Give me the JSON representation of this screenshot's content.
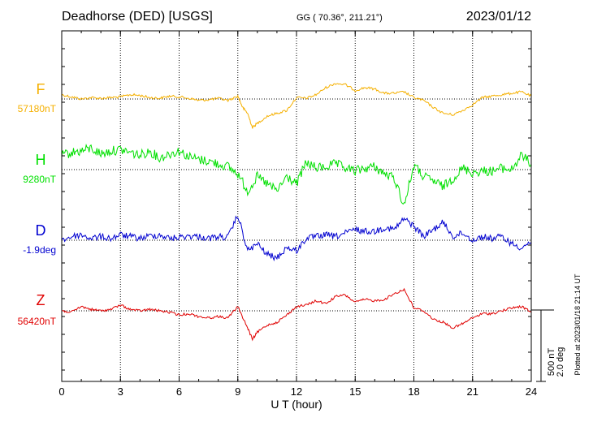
{
  "header": {
    "station": "Deadhorse (DED)  [USGS]",
    "coords": "GG ( 70.36°, 211.21°)",
    "date": "2023/01/12"
  },
  "footer": {
    "plotted_at": "Plotted at 2023/01/18 21:14 UT"
  },
  "colors": {
    "F": "#f5b000",
    "H": "#00e000",
    "D": "#0000d0",
    "Z": "#e00000",
    "axis": "#000000"
  },
  "chart_data": {
    "type": "line",
    "xlabel": "U T (hour)",
    "xlim": [
      0,
      24
    ],
    "xticks": [
      "0",
      "3",
      "6",
      "9",
      "12",
      "15",
      "18",
      "21",
      "24"
    ],
    "scale_bar": {
      "nT": "500 nT",
      "deg": "2.0 deg"
    },
    "series": [
      {
        "name": "F",
        "baseline_label": "57180nT",
        "unit": "nT",
        "x": [
          0,
          0.5,
          1,
          1.5,
          2,
          2.5,
          3,
          3.5,
          4,
          4.5,
          5,
          5.5,
          6,
          6.5,
          7,
          7.5,
          8,
          8.5,
          9,
          9.25,
          9.5,
          9.75,
          10,
          10.5,
          11,
          11.5,
          12,
          12.5,
          13,
          13.5,
          14,
          14.5,
          15,
          15.5,
          16,
          16.5,
          17,
          17.5,
          18,
          18.5,
          19,
          19.5,
          20,
          20.5,
          21,
          21.5,
          22,
          22.5,
          23,
          23.5,
          24
        ],
        "values": [
          30,
          15,
          0,
          10,
          5,
          10,
          15,
          30,
          25,
          10,
          5,
          20,
          15,
          5,
          -10,
          -5,
          5,
          -10,
          20,
          -60,
          -100,
          -200,
          -170,
          -120,
          -100,
          -80,
          10,
          5,
          30,
          80,
          110,
          100,
          60,
          80,
          70,
          40,
          40,
          50,
          10,
          -10,
          -60,
          -100,
          -110,
          -80,
          -40,
          10,
          20,
          30,
          40,
          50,
          20
        ]
      },
      {
        "name": "H",
        "baseline_label": "9280nT",
        "unit": "nT",
        "x": [
          0,
          0.5,
          1,
          1.5,
          2,
          2.5,
          3,
          3.5,
          4,
          4.5,
          5,
          5.5,
          6,
          6.5,
          7,
          7.5,
          8,
          8.5,
          9,
          9.5,
          10,
          10.5,
          11,
          11.5,
          12,
          12.5,
          13,
          13.5,
          14,
          14.5,
          15,
          15.5,
          16,
          16.5,
          17,
          17.5,
          18,
          18.5,
          19,
          19.5,
          20,
          20.5,
          21,
          21.5,
          22,
          22.5,
          23,
          23.5,
          24
        ],
        "values": [
          100,
          120,
          130,
          150,
          110,
          130,
          140,
          120,
          100,
          130,
          80,
          110,
          130,
          90,
          70,
          60,
          40,
          20,
          -30,
          -150,
          -50,
          -100,
          -150,
          -50,
          -100,
          50,
          10,
          20,
          40,
          10,
          -10,
          10,
          20,
          -30,
          -60,
          -250,
          30,
          -50,
          -80,
          -120,
          -60,
          10,
          -20,
          -10,
          -10,
          10,
          0,
          100,
          40
        ]
      },
      {
        "name": "D",
        "baseline_label": "-1.9deg",
        "unit": "deg",
        "x": [
          0,
          0.5,
          1,
          1.5,
          2,
          2.5,
          3,
          3.5,
          4,
          4.5,
          5,
          5.5,
          6,
          6.5,
          7,
          7.5,
          8,
          8.5,
          9,
          9.5,
          10,
          10.5,
          11,
          11.5,
          12,
          12.5,
          13,
          13.5,
          14,
          14.5,
          15,
          15.5,
          16,
          16.5,
          17,
          17.5,
          18,
          18.5,
          19,
          19.5,
          20,
          20.5,
          21,
          21.5,
          22,
          22.5,
          23,
          23.5,
          24
        ],
        "values": [
          0.0,
          0.1,
          0.15,
          0.05,
          0.1,
          0.05,
          0.15,
          0.1,
          0.05,
          0.12,
          0.15,
          0.05,
          0.08,
          0.12,
          0.1,
          0.05,
          0.1,
          0.08,
          0.7,
          -0.3,
          -0.1,
          -0.4,
          -0.5,
          -0.2,
          -0.3,
          0.05,
          0.1,
          0.15,
          0.1,
          0.2,
          0.3,
          0.25,
          0.25,
          0.35,
          0.3,
          0.6,
          0.4,
          0.1,
          0.3,
          0.5,
          0.1,
          0.2,
          0.0,
          0.1,
          0.05,
          0.1,
          -0.1,
          -0.2,
          -0.05
        ]
      },
      {
        "name": "Z",
        "baseline_label": "56420nT",
        "unit": "nT",
        "x": [
          0,
          0.5,
          1,
          1.5,
          2,
          2.5,
          3,
          3.5,
          4,
          4.5,
          5,
          5.5,
          6,
          6.5,
          7,
          7.5,
          8,
          8.5,
          9,
          9.5,
          9.75,
          10,
          10.5,
          11,
          11.5,
          12,
          12.5,
          13,
          13.5,
          14,
          14.5,
          15,
          15.5,
          16,
          16.5,
          17,
          17.5,
          18,
          18.5,
          19,
          19.5,
          20,
          20.5,
          21,
          21.5,
          22,
          22.5,
          23,
          23.5,
          24
        ],
        "values": [
          0,
          -10,
          30,
          10,
          0,
          10,
          40,
          10,
          0,
          10,
          0,
          -10,
          -30,
          -20,
          -40,
          -50,
          -40,
          -50,
          30,
          -120,
          -200,
          -150,
          -100,
          -80,
          -30,
          30,
          40,
          70,
          50,
          100,
          110,
          60,
          80,
          70,
          80,
          120,
          150,
          20,
          0,
          -60,
          -80,
          -120,
          -90,
          -50,
          -20,
          -20,
          0,
          20,
          30,
          -10
        ]
      }
    ]
  }
}
